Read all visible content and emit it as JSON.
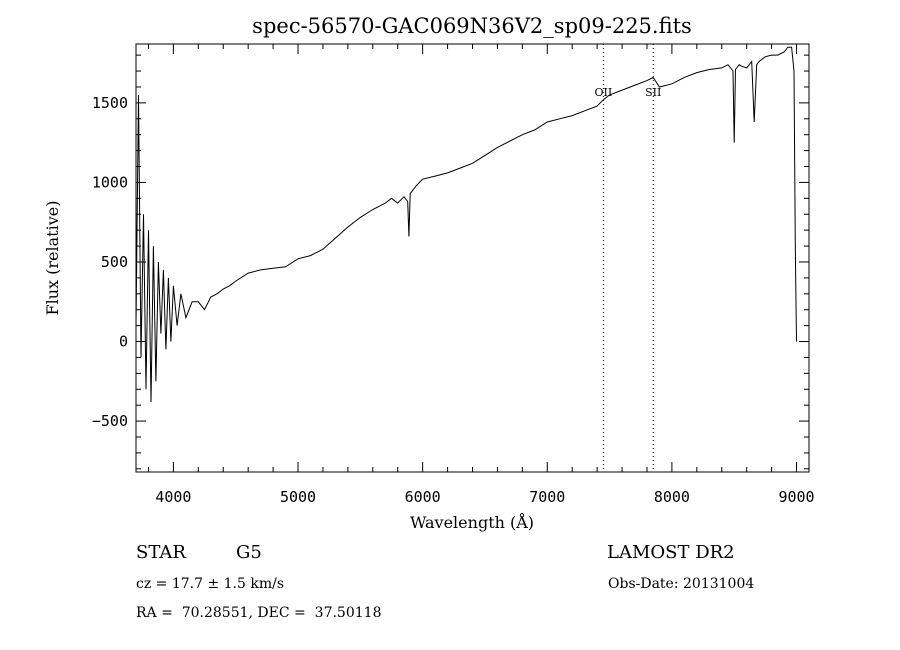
{
  "chart_data": {
    "type": "line",
    "title": "spec-56570-GAC069N36V2_sp09-225.fits",
    "xlabel": "Wavelength (Å)",
    "ylabel": "Flux (relative)",
    "xlim": [
      3700,
      9100
    ],
    "ylim": [
      -820,
      1870
    ],
    "x_ticks": [
      4000,
      5000,
      6000,
      7000,
      8000,
      9000
    ],
    "y_ticks": [
      -500,
      0,
      500,
      1000,
      1500
    ],
    "grid": false,
    "line_color": "#000000",
    "x": [
      3700,
      3720,
      3740,
      3760,
      3780,
      3800,
      3820,
      3840,
      3860,
      3880,
      3900,
      3920,
      3940,
      3960,
      3980,
      4000,
      4030,
      4060,
      4100,
      4150,
      4200,
      4250,
      4300,
      4350,
      4400,
      4450,
      4500,
      4600,
      4700,
      4800,
      4900,
      5000,
      5100,
      5200,
      5300,
      5400,
      5500,
      5600,
      5700,
      5750,
      5800,
      5850,
      5880,
      5890,
      5900,
      5950,
      6000,
      6100,
      6200,
      6300,
      6400,
      6500,
      6600,
      6700,
      6800,
      6900,
      7000,
      7100,
      7200,
      7300,
      7400,
      7450,
      7500,
      7600,
      7700,
      7800,
      7850,
      7900,
      8000,
      8100,
      8200,
      8300,
      8400,
      8450,
      8490,
      8500,
      8510,
      8540,
      8560,
      8600,
      8640,
      8660,
      8680,
      8700,
      8750,
      8800,
      8850,
      8900,
      8930,
      8960,
      8980,
      8990,
      9000
    ],
    "y": [
      100,
      1550,
      -100,
      800,
      -300,
      700,
      -380,
      600,
      -250,
      500,
      50,
      450,
      -50,
      400,
      0,
      350,
      100,
      300,
      150,
      250,
      250,
      200,
      280,
      300,
      330,
      350,
      380,
      430,
      450,
      460,
      470,
      520,
      540,
      580,
      650,
      720,
      780,
      830,
      870,
      900,
      870,
      910,
      880,
      660,
      930,
      980,
      1020,
      1040,
      1060,
      1090,
      1120,
      1170,
      1220,
      1260,
      1300,
      1330,
      1380,
      1400,
      1420,
      1450,
      1480,
      1520,
      1550,
      1580,
      1610,
      1640,
      1660,
      1600,
      1620,
      1660,
      1690,
      1710,
      1720,
      1740,
      1700,
      1250,
      1710,
      1740,
      1730,
      1720,
      1760,
      1380,
      1740,
      1760,
      1790,
      1800,
      1800,
      1820,
      1850,
      1850,
      1700,
      600,
      0
    ],
    "annotations": [
      {
        "label": "OII",
        "x": 7450
      },
      {
        "label": "SII",
        "x": 7850
      }
    ],
    "vlines": [
      7450,
      7850
    ],
    "object_class": "STAR",
    "subclass": "G5",
    "survey": "LAMOST DR2",
    "redshift_text": "cz = 17.7 ± 1.5 km/s",
    "obs_date_text": "Obs-Date: 20131004",
    "coords_text": "RA =  70.28551, DEC =  37.50118"
  }
}
